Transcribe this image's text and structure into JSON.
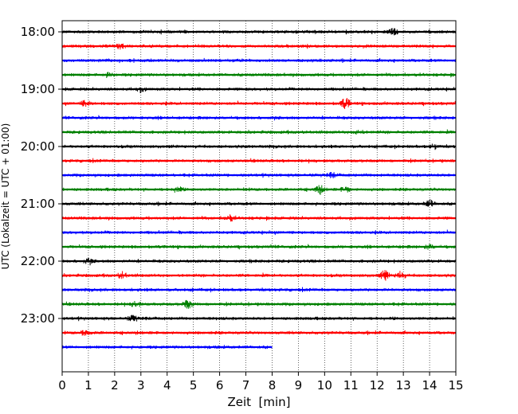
{
  "chart_data": {
    "type": "line",
    "subtype": "helicorder",
    "xlabel": "Zeit  [min]",
    "ylabel": "UTC (Lokalzeit = UTC + 01:00)",
    "xlim": [
      0,
      15
    ],
    "x_ticks": [
      0,
      1,
      2,
      3,
      4,
      5,
      6,
      7,
      8,
      9,
      10,
      11,
      12,
      13,
      14,
      15
    ],
    "x_grid": "dotted",
    "y_ticks": [
      {
        "label": "18:00",
        "trace": 0
      },
      {
        "label": "19:00",
        "trace": 4
      },
      {
        "label": "20:00",
        "trace": 8
      },
      {
        "label": "21:00",
        "trace": 12
      },
      {
        "label": "22:00",
        "trace": 16
      },
      {
        "label": "23:00",
        "trace": 20
      }
    ],
    "trace_interval_min": 15,
    "color_cycle": [
      "#000000",
      "#ff0000",
      "#0000ff",
      "#008000"
    ],
    "series": [
      {
        "start": "18:00",
        "end_min": 15,
        "events": [
          {
            "x": 12.6,
            "amp": 2.2
          }
        ]
      },
      {
        "start": "18:15",
        "end_min": 15,
        "events": [
          {
            "x": 2.2,
            "amp": 1.6
          }
        ]
      },
      {
        "start": "18:30",
        "end_min": 15,
        "events": []
      },
      {
        "start": "18:45",
        "end_min": 15,
        "events": [
          {
            "x": 1.8,
            "amp": 1.4
          }
        ]
      },
      {
        "start": "19:00",
        "end_min": 15,
        "events": [
          {
            "x": 3.0,
            "amp": 1.2
          }
        ]
      },
      {
        "start": "19:15",
        "end_min": 15,
        "events": [
          {
            "x": 0.9,
            "amp": 2.0
          },
          {
            "x": 10.8,
            "amp": 3.2
          }
        ]
      },
      {
        "start": "19:30",
        "end_min": 15,
        "events": []
      },
      {
        "start": "19:45",
        "end_min": 15,
        "events": [
          {
            "x": 11.3,
            "amp": 1.4
          }
        ]
      },
      {
        "start": "20:00",
        "end_min": 15,
        "events": [
          {
            "x": 14.2,
            "amp": 1.5
          }
        ]
      },
      {
        "start": "20:15",
        "end_min": 15,
        "events": []
      },
      {
        "start": "20:30",
        "end_min": 15,
        "events": [
          {
            "x": 10.3,
            "amp": 1.2
          }
        ]
      },
      {
        "start": "20:45",
        "end_min": 15,
        "events": [
          {
            "x": 4.4,
            "amp": 1.6
          },
          {
            "x": 9.8,
            "amp": 2.6
          },
          {
            "x": 10.8,
            "amp": 1.8
          }
        ]
      },
      {
        "start": "21:00",
        "end_min": 15,
        "events": [
          {
            "x": 14.0,
            "amp": 2.0
          }
        ]
      },
      {
        "start": "21:15",
        "end_min": 15,
        "events": [
          {
            "x": 6.4,
            "amp": 1.6
          }
        ]
      },
      {
        "start": "21:30",
        "end_min": 15,
        "events": []
      },
      {
        "start": "21:45",
        "end_min": 15,
        "events": [
          {
            "x": 14.0,
            "amp": 1.3
          }
        ]
      },
      {
        "start": "22:00",
        "end_min": 15,
        "events": [
          {
            "x": 1.0,
            "amp": 1.3
          }
        ]
      },
      {
        "start": "22:15",
        "end_min": 15,
        "events": [
          {
            "x": 2.3,
            "amp": 1.8
          },
          {
            "x": 12.3,
            "amp": 3.0
          },
          {
            "x": 12.9,
            "amp": 2.4
          }
        ]
      },
      {
        "start": "22:30",
        "end_min": 15,
        "events": []
      },
      {
        "start": "22:45",
        "end_min": 15,
        "events": [
          {
            "x": 2.8,
            "amp": 1.5
          },
          {
            "x": 4.8,
            "amp": 2.6
          }
        ]
      },
      {
        "start": "23:00",
        "end_min": 15,
        "events": [
          {
            "x": 2.7,
            "amp": 1.8
          }
        ]
      },
      {
        "start": "23:15",
        "end_min": 15,
        "events": [
          {
            "x": 0.9,
            "amp": 1.8
          }
        ]
      },
      {
        "start": "23:30",
        "end_min": 8.0,
        "events": []
      }
    ]
  }
}
